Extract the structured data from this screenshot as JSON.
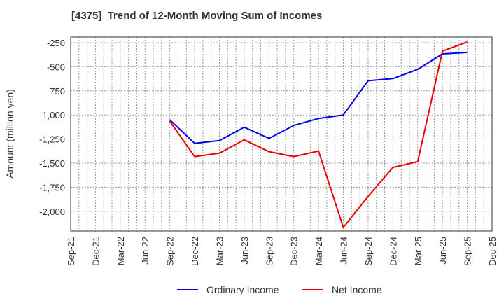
{
  "chart_data": {
    "type": "line",
    "title": "[4375]  Trend of 12-Month Moving Sum of Incomes",
    "xlabel": "",
    "ylabel": "Amount (million yen)",
    "categories": [
      "Sep-21",
      "Dec-21",
      "Mar-22",
      "Jun-22",
      "Sep-22",
      "Dec-22",
      "Mar-23",
      "Jun-23",
      "Sep-23",
      "Dec-23",
      "Mar-24",
      "Jun-24",
      "Sep-24",
      "Dec-24",
      "Mar-25",
      "Jun-25",
      "Sep-25",
      "Dec-25"
    ],
    "ylim": [
      -2200,
      -200
    ],
    "yticks": [
      -250,
      -500,
      -750,
      -1000,
      -1250,
      -1500,
      -1750,
      -2000
    ],
    "ytick_labels": [
      "-250",
      "-500",
      "-750",
      "-1,000",
      "-1,250",
      "-1,500",
      "-1,750",
      "-2,000"
    ],
    "grid": true,
    "legend_position": "bottom",
    "series": [
      {
        "name": "Ordinary Income",
        "color": "#0000ee",
        "values": [
          null,
          null,
          null,
          null,
          -1051,
          -1294,
          -1265,
          -1127,
          -1243,
          -1109,
          -1036,
          -1000,
          -645,
          -623,
          -527,
          -366,
          -352,
          null
        ]
      },
      {
        "name": "Net Income",
        "color": "#ee0000",
        "values": [
          null,
          null,
          null,
          null,
          -1065,
          -1432,
          -1396,
          -1258,
          -1381,
          -1432,
          -1374,
          -2167,
          -1845,
          -1544,
          -1485,
          -337,
          -243,
          null
        ]
      }
    ]
  }
}
